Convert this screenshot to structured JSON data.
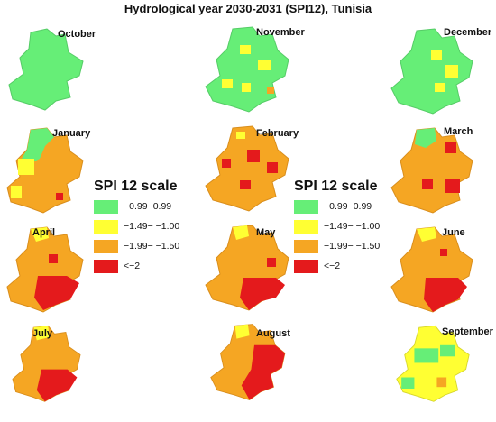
{
  "title": "Hydrological year 2030-2031 (SPI12), Tunisia",
  "legend": {
    "title": "SPI 12 scale",
    "classes": [
      {
        "label": "−0.99−0.99",
        "color": "#66ee77"
      },
      {
        "label": "−1.49− −1.00",
        "color": "#ffff33"
      },
      {
        "label": "−1.99− −1.50",
        "color": "#f5a623"
      },
      {
        "label": "<−2",
        "color": "#e41a1c"
      }
    ]
  },
  "months": [
    {
      "name": "October",
      "dominant": "−0.99−0.99"
    },
    {
      "name": "November",
      "dominant": "−0.99−0.99"
    },
    {
      "name": "December",
      "dominant": "−0.99−0.99"
    },
    {
      "name": "January",
      "dominant": "−1.99− −1.50"
    },
    {
      "name": "February",
      "dominant": "−1.99− −1.50"
    },
    {
      "name": "March",
      "dominant": "−1.99− −1.50"
    },
    {
      "name": "April",
      "dominant": "−1.99− −1.50"
    },
    {
      "name": "May",
      "dominant": "−1.99− −1.50"
    },
    {
      "name": "June",
      "dominant": "−1.99− −1.50"
    },
    {
      "name": "July",
      "dominant": "−1.99− −1.50"
    },
    {
      "name": "August",
      "dominant": "−1.99− −1.50"
    },
    {
      "name": "September",
      "dominant": "−1.49− −1.00"
    }
  ]
}
